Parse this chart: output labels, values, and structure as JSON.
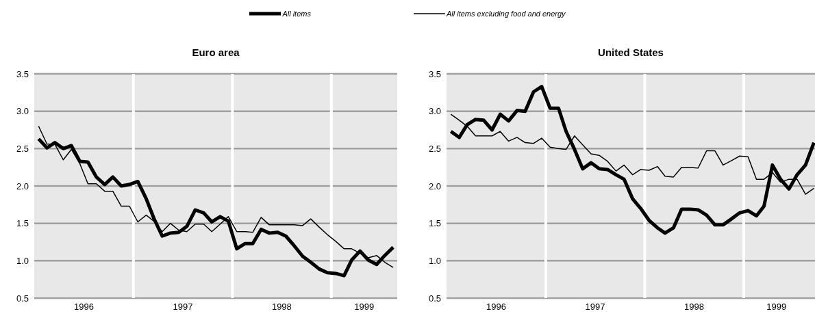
{
  "chart_data": [
    {
      "type": "line",
      "title": "Euro area",
      "legend": "top",
      "grid": "y",
      "marker": "none",
      "line_style": "solid",
      "x": [
        "1996-01",
        "1996-02",
        "1996-03",
        "1996-04",
        "1996-05",
        "1996-06",
        "1996-07",
        "1996-08",
        "1996-09",
        "1996-10",
        "1996-11",
        "1996-12",
        "1997-01",
        "1997-02",
        "1997-03",
        "1997-04",
        "1997-05",
        "1997-06",
        "1997-07",
        "1997-08",
        "1997-09",
        "1997-10",
        "1997-11",
        "1997-12",
        "1998-01",
        "1998-02",
        "1998-03",
        "1998-04",
        "1998-05",
        "1998-06",
        "1998-07",
        "1998-08",
        "1998-09",
        "1998-10",
        "1998-11",
        "1998-12",
        "1999-01",
        "1999-02",
        "1999-03",
        "1999-04",
        "1999-05",
        "1999-06",
        "1999-07",
        "1999-08"
      ],
      "series": [
        {
          "name": "All items",
          "color": "#000000",
          "values": [
            2.63,
            2.51,
            2.58,
            2.5,
            2.54,
            2.33,
            2.32,
            2.12,
            2.02,
            2.12,
            2.0,
            2.02,
            2.06,
            1.83,
            1.57,
            1.33,
            1.37,
            1.38,
            1.46,
            1.68,
            1.64,
            1.52,
            1.59,
            1.53,
            1.16,
            1.23,
            1.23,
            1.42,
            1.37,
            1.38,
            1.33,
            1.2,
            1.06,
            0.98,
            0.89,
            0.84,
            0.83,
            0.8,
            1.01,
            1.13,
            1.01,
            0.95,
            1.07,
            1.18
          ]
        },
        {
          "name": "All items excluding food and energy",
          "color": "#000000",
          "values": [
            2.8,
            2.56,
            2.56,
            2.35,
            2.49,
            2.3,
            2.03,
            2.03,
            1.93,
            1.93,
            1.73,
            1.73,
            1.52,
            1.61,
            1.53,
            1.39,
            1.5,
            1.41,
            1.39,
            1.49,
            1.49,
            1.39,
            1.49,
            1.59,
            1.39,
            1.39,
            1.38,
            1.58,
            1.48,
            1.48,
            1.48,
            1.48,
            1.47,
            1.56,
            1.45,
            1.35,
            1.26,
            1.16,
            1.16,
            1.1,
            1.04,
            1.07,
            0.98,
            0.91
          ]
        }
      ],
      "xlim": [
        "1995-12-16",
        "1999-08-16"
      ],
      "xticks": [
        {
          "value": "1996-06-16",
          "label": "1996"
        },
        {
          "value": "1997-06-16",
          "label": "1997"
        },
        {
          "value": "1998-06-16",
          "label": "1998"
        },
        {
          "value": "1999-04-16",
          "label": "1999"
        }
      ],
      "ylim": [
        0.5,
        3.5
      ],
      "yticks": [
        {
          "value": 0.5,
          "label": "0.5"
        },
        {
          "value": 1,
          "label": "1.0"
        },
        {
          "value": 1.5,
          "label": "1.5"
        },
        {
          "value": 2,
          "label": "2.0"
        },
        {
          "value": 2.5,
          "label": "2.5"
        },
        {
          "value": 3,
          "label": "3.0"
        },
        {
          "value": 3.5,
          "label": "3.5"
        }
      ],
      "ref_lines": [
        {
          "axis": "x",
          "value": "1996-12-16",
          "color": "#ffffff"
        },
        {
          "axis": "x",
          "value": "1997-12-16",
          "color": "#ffffff"
        },
        {
          "axis": "x",
          "value": "1998-12-16",
          "color": "#ffffff"
        }
      ]
    },
    {
      "type": "line",
      "title": "United States",
      "grid": "y",
      "marker": "none",
      "line_style": "solid",
      "x": [
        "1996-01",
        "1996-02",
        "1996-03",
        "1996-04",
        "1996-05",
        "1996-06",
        "1996-07",
        "1996-08",
        "1996-09",
        "1996-10",
        "1996-11",
        "1996-12",
        "1997-01",
        "1997-02",
        "1997-03",
        "1997-04",
        "1997-05",
        "1997-06",
        "1997-07",
        "1997-08",
        "1997-09",
        "1997-10",
        "1997-11",
        "1997-12",
        "1998-01",
        "1998-02",
        "1998-03",
        "1998-04",
        "1998-05",
        "1998-06",
        "1998-07",
        "1998-08",
        "1998-09",
        "1998-10",
        "1998-11",
        "1998-12",
        "1999-01",
        "1999-02",
        "1999-03",
        "1999-04",
        "1999-05",
        "1999-06",
        "1999-07",
        "1999-08",
        "1999-09"
      ],
      "series": [
        {
          "color": "#000000",
          "values": [
            2.73,
            2.65,
            2.82,
            2.89,
            2.88,
            2.75,
            2.96,
            2.87,
            3.01,
            3.0,
            3.26,
            3.33,
            3.04,
            3.04,
            2.73,
            2.49,
            2.23,
            2.31,
            2.23,
            2.22,
            2.15,
            2.09,
            1.83,
            1.7,
            1.54,
            1.44,
            1.37,
            1.44,
            1.69,
            1.69,
            1.68,
            1.61,
            1.48,
            1.48,
            1.56,
            1.64,
            1.67,
            1.6,
            1.73,
            2.28,
            2.09,
            1.96,
            2.15,
            2.28,
            2.58
          ]
        },
        {
          "color": "#000000",
          "values": [
            2.96,
            2.88,
            2.8,
            2.67,
            2.67,
            2.67,
            2.73,
            2.6,
            2.65,
            2.58,
            2.57,
            2.64,
            2.52,
            2.5,
            2.49,
            2.67,
            2.55,
            2.43,
            2.41,
            2.33,
            2.2,
            2.28,
            2.15,
            2.22,
            2.21,
            2.26,
            2.13,
            2.12,
            2.25,
            2.25,
            2.24,
            2.47,
            2.47,
            2.28,
            2.34,
            2.4,
            2.39,
            2.09,
            2.09,
            2.18,
            2.05,
            2.09,
            2.09,
            1.89,
            1.97
          ]
        }
      ],
      "xlim": [
        "1995-12-16",
        "1999-09-05"
      ],
      "xticks": [
        {
          "value": "1996-06-16",
          "label": "1996"
        },
        {
          "value": "1997-06-16",
          "label": "1997"
        },
        {
          "value": "1998-06-16",
          "label": "1998"
        },
        {
          "value": "1999-04-16",
          "label": "1999"
        }
      ],
      "ylim": [
        0.5,
        3.5
      ],
      "yticks": [
        {
          "value": 0.5,
          "label": "0.5"
        },
        {
          "value": 1,
          "label": "1.0"
        },
        {
          "value": 1.5,
          "label": "1.5"
        },
        {
          "value": 2,
          "label": "2.0"
        },
        {
          "value": 2.5,
          "label": "2.5"
        },
        {
          "value": 3,
          "label": "3.0"
        },
        {
          "value": 3.5,
          "label": "3.5"
        }
      ],
      "ref_lines": [
        {
          "axis": "x",
          "value": "1996-12-16",
          "color": "#ffffff"
        },
        {
          "axis": "x",
          "value": "1997-12-16",
          "color": "#ffffff"
        },
        {
          "axis": "x",
          "value": "1998-12-16",
          "color": "#ffffff"
        }
      ]
    }
  ]
}
